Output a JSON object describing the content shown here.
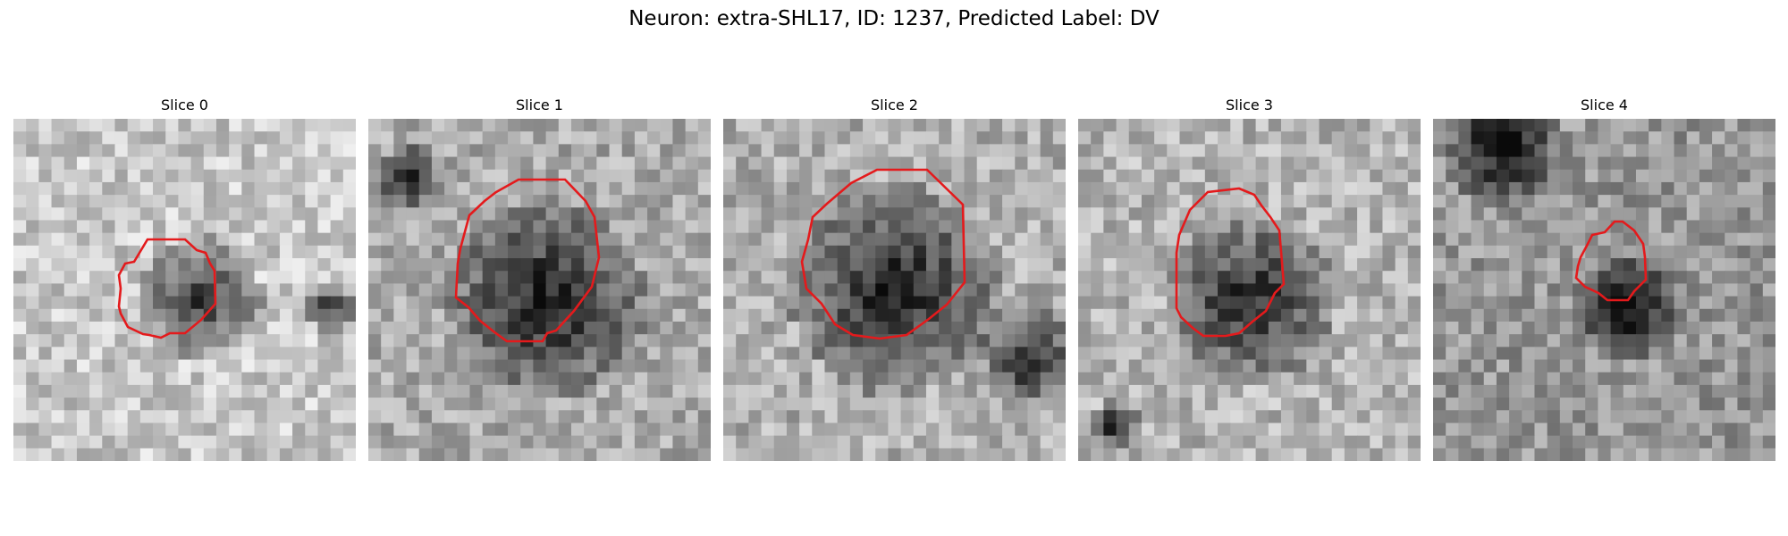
{
  "figure": {
    "title": "Neuron: extra-SHL17, ID: 1237, Predicted Label: DV"
  },
  "panels": [
    {
      "title": "Slice 0",
      "outline_color": "#e41a1c"
    },
    {
      "title": "Slice 1",
      "outline_color": "#e41a1c"
    },
    {
      "title": "Slice 2",
      "outline_color": "#e41a1c"
    },
    {
      "title": "Slice 3",
      "outline_color": "#e41a1c"
    },
    {
      "title": "Slice 4",
      "outline_color": "#e41a1c"
    }
  ]
}
